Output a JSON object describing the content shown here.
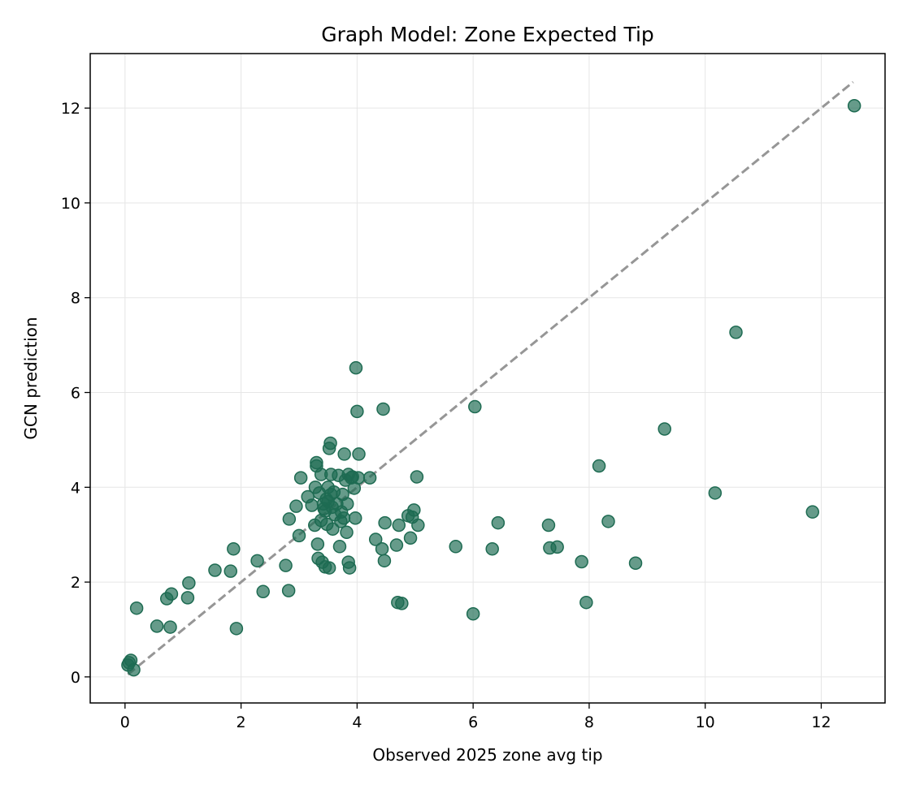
{
  "chart_data": {
    "type": "scatter",
    "title": "Graph Model: Zone Expected Tip",
    "xlabel": "Observed 2025 zone avg tip",
    "ylabel": "GCN prediction",
    "xlim": [
      -0.6,
      13.1
    ],
    "ylim": [
      -0.55,
      13.15
    ],
    "xticks": [
      0,
      2,
      4,
      6,
      8,
      10,
      12
    ],
    "yticks": [
      0,
      2,
      4,
      6,
      8,
      10,
      12
    ],
    "grid": true,
    "legend": "none",
    "colors": {
      "points": "#1e6b52",
      "reference_line": "#969696"
    },
    "reference_line": {
      "style": "dashed",
      "x": [
        0.05,
        12.55
      ],
      "y": [
        0.05,
        12.55
      ]
    },
    "series": [
      {
        "points": [
          [
            0.05,
            0.25
          ],
          [
            0.07,
            0.3
          ],
          [
            0.1,
            0.35
          ],
          [
            0.15,
            0.15
          ],
          [
            0.2,
            1.45
          ],
          [
            0.55,
            1.07
          ],
          [
            0.72,
            1.65
          ],
          [
            0.78,
            1.05
          ],
          [
            0.8,
            1.75
          ],
          [
            1.08,
            1.67
          ],
          [
            1.1,
            1.98
          ],
          [
            1.55,
            2.25
          ],
          [
            1.82,
            2.23
          ],
          [
            1.87,
            2.7
          ],
          [
            1.92,
            1.02
          ],
          [
            2.28,
            2.45
          ],
          [
            2.38,
            1.8
          ],
          [
            2.77,
            2.35
          ],
          [
            2.82,
            1.82
          ],
          [
            2.83,
            3.33
          ],
          [
            2.95,
            3.6
          ],
          [
            3.0,
            2.98
          ],
          [
            3.03,
            4.2
          ],
          [
            3.15,
            3.8
          ],
          [
            3.22,
            3.62
          ],
          [
            3.27,
            3.2
          ],
          [
            3.28,
            4.0
          ],
          [
            3.3,
            4.45
          ],
          [
            3.3,
            4.52
          ],
          [
            3.32,
            2.8
          ],
          [
            3.33,
            2.5
          ],
          [
            3.35,
            3.88
          ],
          [
            3.38,
            3.3
          ],
          [
            3.38,
            4.27
          ],
          [
            3.4,
            2.42
          ],
          [
            3.42,
            3.65
          ],
          [
            3.43,
            3.55
          ],
          [
            3.45,
            2.32
          ],
          [
            3.45,
            3.5
          ],
          [
            3.47,
            3.75
          ],
          [
            3.48,
            3.22
          ],
          [
            3.5,
            4.0
          ],
          [
            3.5,
            3.7
          ],
          [
            3.52,
            4.82
          ],
          [
            3.52,
            2.3
          ],
          [
            3.54,
            4.93
          ],
          [
            3.55,
            4.27
          ],
          [
            3.55,
            3.85
          ],
          [
            3.57,
            3.58
          ],
          [
            3.58,
            3.12
          ],
          [
            3.6,
            3.9
          ],
          [
            3.62,
            3.42
          ],
          [
            3.65,
            3.65
          ],
          [
            3.68,
            4.25
          ],
          [
            3.7,
            2.75
          ],
          [
            3.72,
            3.28
          ],
          [
            3.73,
            3.48
          ],
          [
            3.75,
            3.85
          ],
          [
            3.77,
            3.35
          ],
          [
            3.78,
            4.7
          ],
          [
            3.8,
            4.15
          ],
          [
            3.82,
            3.05
          ],
          [
            3.83,
            3.65
          ],
          [
            3.85,
            4.27
          ],
          [
            3.85,
            2.42
          ],
          [
            3.87,
            2.3
          ],
          [
            3.9,
            4.2
          ],
          [
            3.92,
            4.22
          ],
          [
            3.95,
            3.98
          ],
          [
            3.97,
            3.35
          ],
          [
            3.98,
            6.52
          ],
          [
            4.0,
            5.6
          ],
          [
            4.02,
            4.2
          ],
          [
            4.03,
            4.7
          ],
          [
            4.22,
            4.2
          ],
          [
            4.32,
            2.9
          ],
          [
            4.43,
            2.7
          ],
          [
            4.45,
            5.65
          ],
          [
            4.47,
            2.45
          ],
          [
            4.48,
            3.25
          ],
          [
            4.68,
            2.78
          ],
          [
            4.7,
            1.57
          ],
          [
            4.72,
            3.2
          ],
          [
            4.77,
            1.55
          ],
          [
            4.88,
            3.4
          ],
          [
            4.92,
            2.93
          ],
          [
            4.95,
            3.37
          ],
          [
            4.98,
            3.52
          ],
          [
            5.03,
            4.22
          ],
          [
            5.05,
            3.2
          ],
          [
            5.7,
            2.75
          ],
          [
            6.0,
            1.33
          ],
          [
            6.03,
            5.7
          ],
          [
            6.33,
            2.7
          ],
          [
            6.43,
            3.25
          ],
          [
            7.3,
            3.2
          ],
          [
            7.32,
            2.72
          ],
          [
            7.45,
            2.74
          ],
          [
            7.87,
            2.43
          ],
          [
            7.95,
            1.57
          ],
          [
            8.17,
            4.45
          ],
          [
            8.33,
            3.28
          ],
          [
            8.8,
            2.4
          ],
          [
            9.3,
            5.23
          ],
          [
            10.17,
            3.88
          ],
          [
            10.53,
            7.27
          ],
          [
            11.85,
            3.48
          ],
          [
            12.57,
            12.05
          ]
        ]
      }
    ]
  }
}
